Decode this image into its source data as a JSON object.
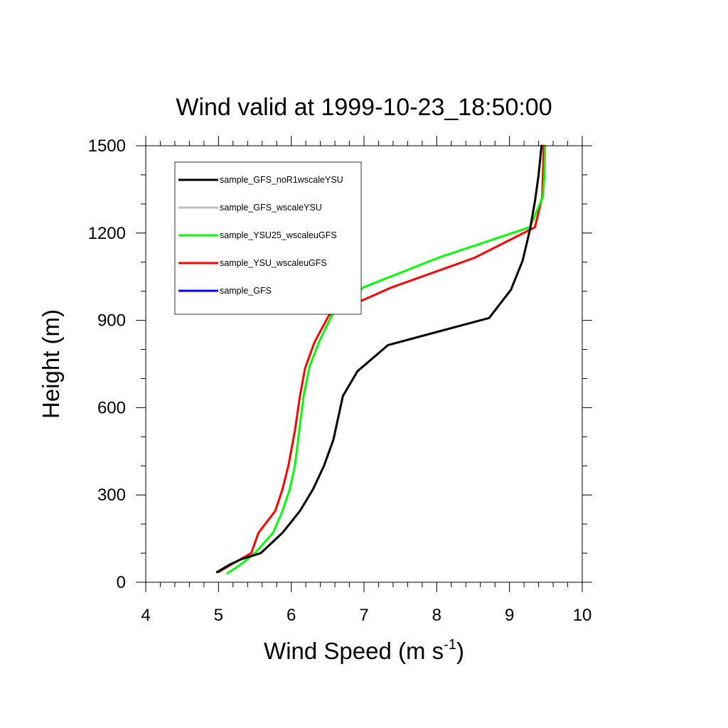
{
  "chart_data": {
    "type": "line",
    "title": "Wind valid at 1999-10-23_18:50:00",
    "xlabel": "Wind Speed (m s",
    "xlabel_superscript": "-1",
    "xlabel_suffix": ")",
    "ylabel": "Height (m)",
    "xlim": [
      4,
      10
    ],
    "ylim": [
      0,
      1500
    ],
    "x_ticks": [
      "4",
      "5",
      "6",
      "7",
      "8",
      "9",
      "10"
    ],
    "y_ticks": [
      "0",
      "300",
      "600",
      "900",
      "1200",
      "1500"
    ],
    "legend_position": "top-left",
    "series": [
      {
        "name": "sample_GFS_noR1wscaleYSU",
        "color": "#000000",
        "points": [
          [
            4.98,
            35
          ],
          [
            5.15,
            60
          ],
          [
            5.32,
            80
          ],
          [
            5.58,
            100
          ],
          [
            5.88,
            170
          ],
          [
            6.12,
            245
          ],
          [
            6.3,
            320
          ],
          [
            6.45,
            400
          ],
          [
            6.58,
            490
          ],
          [
            6.71,
            640
          ],
          [
            6.91,
            725
          ],
          [
            7.33,
            815
          ],
          [
            8.0,
            860
          ],
          [
            8.72,
            908
          ],
          [
            9.02,
            1005
          ],
          [
            9.18,
            1105
          ],
          [
            9.28,
            1210
          ],
          [
            9.35,
            1310
          ],
          [
            9.4,
            1400
          ],
          [
            9.44,
            1500
          ]
        ]
      },
      {
        "name": "sample_GFS_wscaleYSU",
        "color": "#c0c0c0",
        "points": [
          [
            4.98,
            35
          ],
          [
            5.15,
            60
          ],
          [
            5.32,
            80
          ],
          [
            5.58,
            100
          ],
          [
            5.88,
            170
          ],
          [
            6.12,
            245
          ],
          [
            6.3,
            320
          ],
          [
            6.45,
            400
          ],
          [
            6.58,
            490
          ],
          [
            6.71,
            640
          ],
          [
            6.91,
            725
          ],
          [
            7.33,
            815
          ],
          [
            8.0,
            860
          ],
          [
            8.72,
            908
          ],
          [
            9.02,
            1005
          ],
          [
            9.18,
            1105
          ],
          [
            9.28,
            1210
          ],
          [
            9.35,
            1310
          ],
          [
            9.4,
            1400
          ],
          [
            9.44,
            1500
          ]
        ]
      },
      {
        "name": "sample_YSU25_wscaleuGFS",
        "color": "#00ff00",
        "points": [
          [
            5.12,
            30
          ],
          [
            5.3,
            60
          ],
          [
            5.5,
            100
          ],
          [
            5.75,
            170
          ],
          [
            5.88,
            245
          ],
          [
            5.98,
            320
          ],
          [
            6.05,
            400
          ],
          [
            6.11,
            520
          ],
          [
            6.17,
            640
          ],
          [
            6.25,
            740
          ],
          [
            6.38,
            825
          ],
          [
            6.56,
            918
          ],
          [
            6.99,
            1013
          ],
          [
            8.02,
            1115
          ],
          [
            9.28,
            1220
          ],
          [
            9.46,
            1325
          ],
          [
            9.48,
            1400
          ],
          [
            9.49,
            1500
          ]
        ]
      },
      {
        "name": "sample_YSU_wscaleuGFS",
        "color": "#ff0000",
        "points": [
          [
            5.0,
            35
          ],
          [
            5.17,
            60
          ],
          [
            5.45,
            100
          ],
          [
            5.55,
            170
          ],
          [
            5.78,
            245
          ],
          [
            5.88,
            320
          ],
          [
            5.96,
            400
          ],
          [
            6.05,
            520
          ],
          [
            6.12,
            640
          ],
          [
            6.19,
            735
          ],
          [
            6.32,
            825
          ],
          [
            6.52,
            918
          ],
          [
            7.38,
            1013
          ],
          [
            8.52,
            1115
          ],
          [
            9.35,
            1220
          ],
          [
            9.45,
            1325
          ],
          [
            9.46,
            1400
          ],
          [
            9.47,
            1500
          ]
        ]
      },
      {
        "name": "sample_GFS",
        "color": "#0000ff",
        "points": []
      }
    ]
  }
}
